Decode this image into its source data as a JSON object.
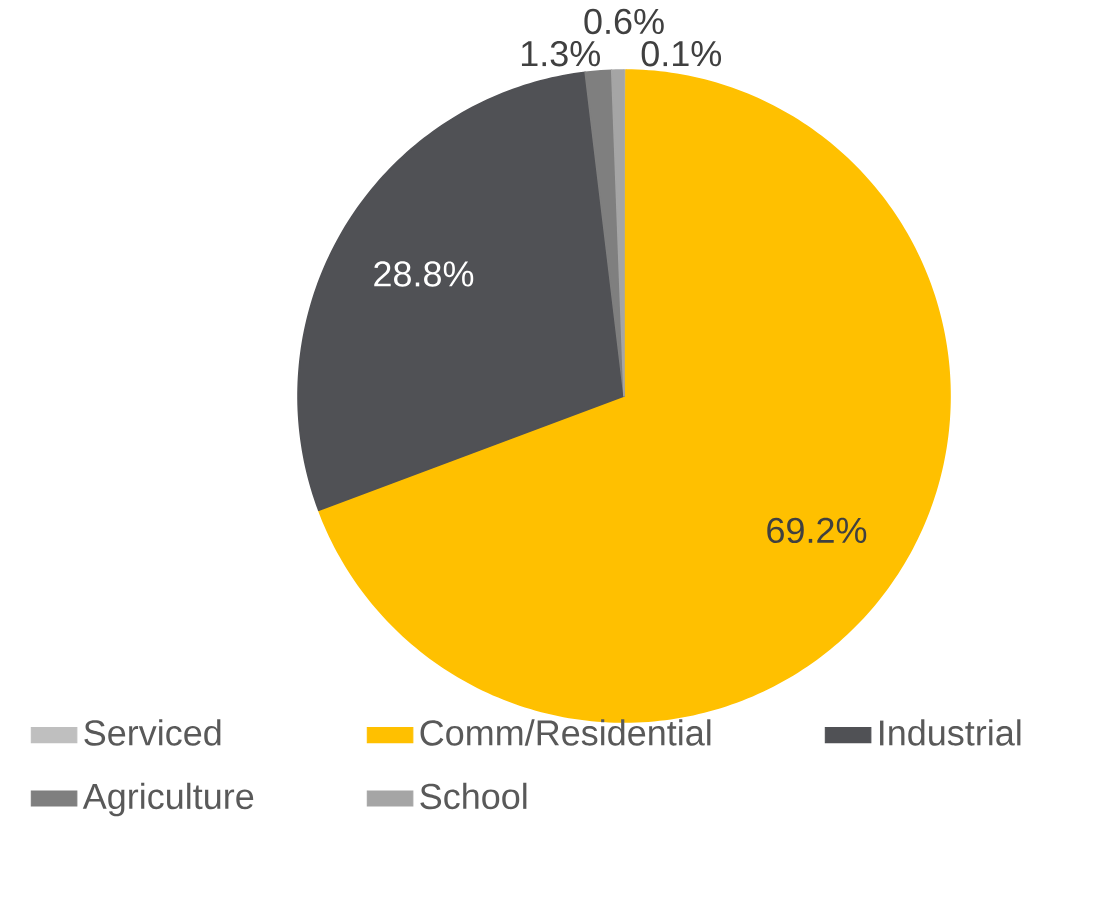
{
  "chart_data": {
    "type": "pie",
    "categories": [
      "Serviced",
      "Comm/Residential",
      "Industrial",
      "Agriculture",
      "School"
    ],
    "values": [
      0.1,
      69.2,
      28.8,
      1.3,
      0.6
    ],
    "colors": [
      "#bfbfbf",
      "#ffc000",
      "#505155",
      "#7f7f7f",
      "#a5a5a5"
    ],
    "value_labels": [
      "0.1%",
      "69.2%",
      "28.8%",
      "1.3%",
      "0.6%"
    ],
    "legend": "bottom"
  }
}
